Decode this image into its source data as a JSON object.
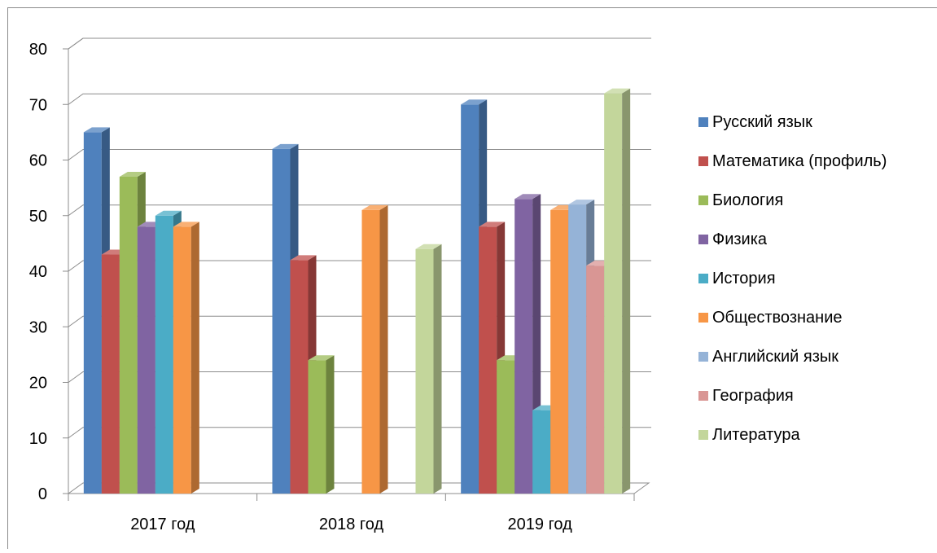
{
  "chart_data": {
    "type": "bar",
    "title": "",
    "xlabel": "",
    "ylabel": "",
    "ylim": [
      0,
      80
    ],
    "yticks": [
      0,
      10,
      20,
      30,
      40,
      50,
      60,
      70,
      80
    ],
    "grid": true,
    "legend_position": "right",
    "categories": [
      "2017 год",
      "2018 год",
      "2019 год"
    ],
    "series": [
      {
        "name": "Русский язык",
        "color": "#4F81BD",
        "values": [
          65,
          62,
          70
        ]
      },
      {
        "name": "Математика (профиль)",
        "color": "#C0504D",
        "values": [
          43,
          42,
          48
        ]
      },
      {
        "name": "Биология",
        "color": "#9BBB59",
        "values": [
          57,
          24,
          24
        ]
      },
      {
        "name": "Физика",
        "color": "#8064A2",
        "values": [
          48,
          null,
          53
        ]
      },
      {
        "name": "История",
        "color": "#4BACC6",
        "values": [
          50,
          null,
          15
        ]
      },
      {
        "name": "Обществознание",
        "color": "#F79646",
        "values": [
          48,
          51,
          51
        ]
      },
      {
        "name": "Английский язык",
        "color": "#95B3D7",
        "values": [
          null,
          null,
          52
        ]
      },
      {
        "name": "География",
        "color": "#D99694",
        "values": [
          null,
          null,
          41
        ]
      },
      {
        "name": "Литература",
        "color": "#C3D69B",
        "values": [
          null,
          44,
          72
        ]
      }
    ]
  }
}
